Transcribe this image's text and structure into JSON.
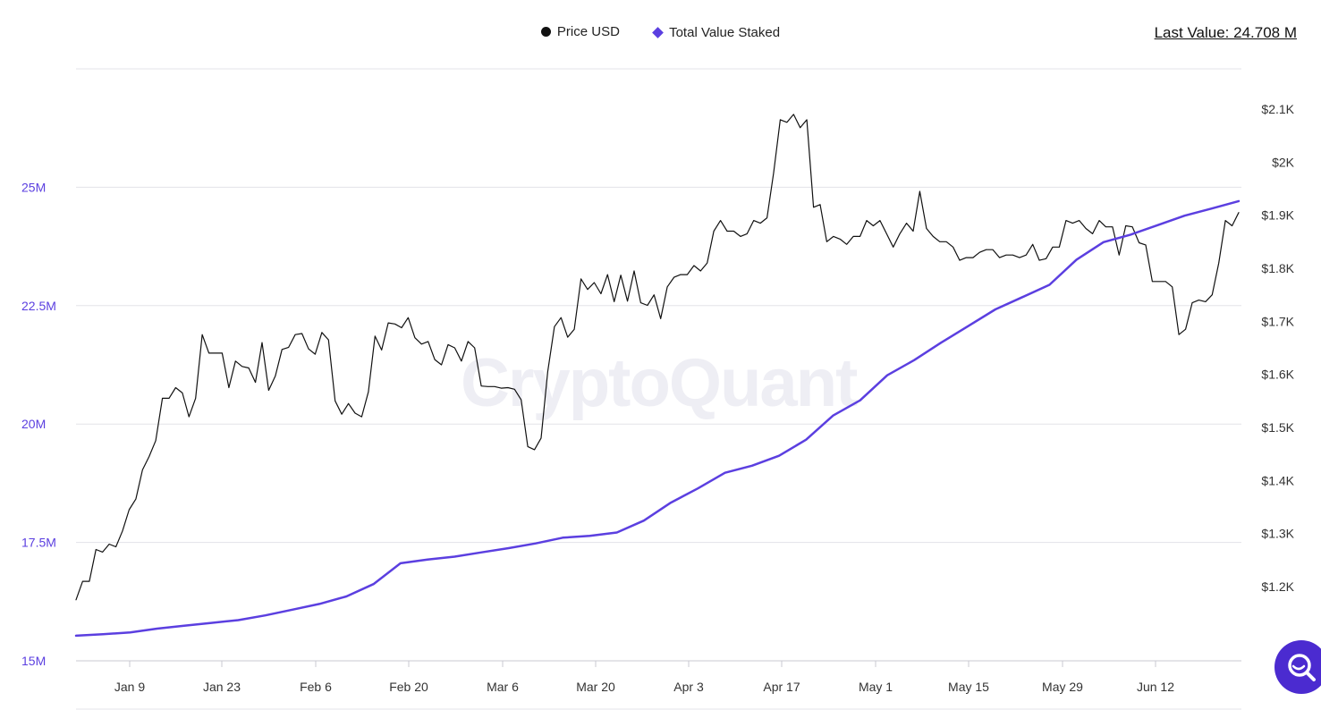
{
  "legend": {
    "price_label": "Price USD",
    "tvs_label": "Total Value Staked"
  },
  "last_value": "Last Value: 24.708 M",
  "watermark": "CryptoQuant",
  "icons": {
    "search_button": "search-icon"
  },
  "colors": {
    "price": "#111111",
    "tvs": "#5b3fe0",
    "left_axis": "#5b3fe0"
  },
  "chart_data": {
    "type": "line",
    "x_tick_labels": [
      "Jan 9",
      "Jan 23",
      "Feb 6",
      "Feb 20",
      "Mar 6",
      "Mar 20",
      "Apr 3",
      "Apr 17",
      "May 1",
      "May 15",
      "May 29",
      "Jun 12"
    ],
    "y_left": {
      "ticks": [
        "15M",
        "17.5M",
        "20M",
        "22.5M",
        "25M"
      ],
      "range": [
        15,
        27.5
      ],
      "unit": "M"
    },
    "y_right": {
      "ticks": [
        "$1.2K",
        "$1.3K",
        "$1.4K",
        "$1.5K",
        "$1.6K",
        "$1.7K",
        "$1.8K",
        "$1.9K",
        "$2K",
        "$2.1K"
      ],
      "range": [
        1.1,
        2.2
      ],
      "unit": "K"
    },
    "series": [
      {
        "name": "Price USD",
        "axis": "right",
        "values": [
          1.175,
          1.21,
          1.21,
          1.27,
          1.265,
          1.28,
          1.275,
          1.305,
          1.345,
          1.365,
          1.42,
          1.445,
          1.475,
          1.555,
          1.555,
          1.575,
          1.565,
          1.52,
          1.555,
          1.675,
          1.64,
          1.64,
          1.64,
          1.575,
          1.625,
          1.615,
          1.612,
          1.585,
          1.66,
          1.57,
          1.597,
          1.647,
          1.651,
          1.675,
          1.677,
          1.648,
          1.638,
          1.679,
          1.665,
          1.55,
          1.525,
          1.545,
          1.527,
          1.52,
          1.567,
          1.672,
          1.646,
          1.697,
          1.695,
          1.688,
          1.707,
          1.669,
          1.657,
          1.662,
          1.628,
          1.618,
          1.656,
          1.65,
          1.625,
          1.662,
          1.65,
          1.578,
          1.577,
          1.577,
          1.574,
          1.575,
          1.572,
          1.552,
          1.464,
          1.458,
          1.48,
          1.605,
          1.69,
          1.707,
          1.67,
          1.685,
          1.78,
          1.76,
          1.773,
          1.752,
          1.788,
          1.737,
          1.787,
          1.738,
          1.795,
          1.735,
          1.73,
          1.75,
          1.705,
          1.765,
          1.783,
          1.788,
          1.788,
          1.805,
          1.795,
          1.81,
          1.87,
          1.89,
          1.87,
          1.87,
          1.86,
          1.865,
          1.89,
          1.885,
          1.895,
          1.98,
          2.08,
          2.075,
          2.09,
          2.065,
          2.08,
          1.915,
          1.92,
          1.85,
          1.86,
          1.855,
          1.845,
          1.86,
          1.86,
          1.89,
          1.88,
          1.89,
          1.865,
          1.84,
          1.865,
          1.885,
          1.87,
          1.945,
          1.875,
          1.86,
          1.85,
          1.85,
          1.84,
          1.815,
          1.82,
          1.82,
          1.83,
          1.835,
          1.835,
          1.82,
          1.825,
          1.825,
          1.82,
          1.825,
          1.845,
          1.815,
          1.818,
          1.84,
          1.84,
          1.89,
          1.885,
          1.89,
          1.875,
          1.865,
          1.89,
          1.878,
          1.878,
          1.825,
          1.88,
          1.878,
          1.848,
          1.844,
          1.775,
          1.775,
          1.775,
          1.765,
          1.675,
          1.685,
          1.735,
          1.74,
          1.737,
          1.75,
          1.81,
          1.89,
          1.88,
          1.905
        ]
      },
      {
        "name": "Total Value Staked",
        "axis": "left",
        "values": [
          15.53,
          15.56,
          15.6,
          15.68,
          15.74,
          15.8,
          15.86,
          15.96,
          16.08,
          16.2,
          16.36,
          16.62,
          17.06,
          17.14,
          17.2,
          17.29,
          17.38,
          17.48,
          17.6,
          17.64,
          17.71,
          17.96,
          18.34,
          18.64,
          18.97,
          19.12,
          19.33,
          19.67,
          20.18,
          20.5,
          21.03,
          21.35,
          21.72,
          22.07,
          22.42,
          22.68,
          22.94,
          23.47,
          23.84,
          24.0,
          24.2,
          24.4,
          24.55,
          24.708
        ]
      }
    ]
  }
}
